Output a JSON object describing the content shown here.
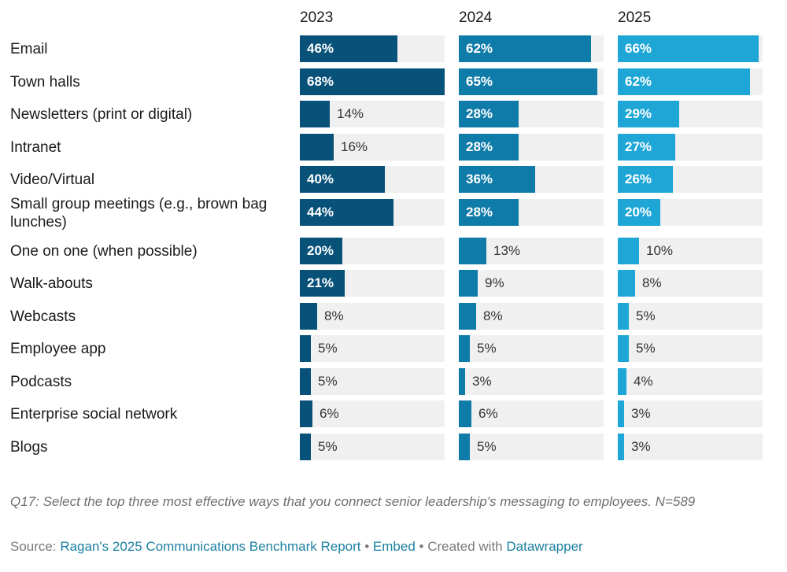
{
  "chart_data": {
    "type": "bar",
    "orientation": "horizontal",
    "layout": "small-multiples",
    "categories": [
      "Email",
      "Town halls",
      "Newsletters (print or digital)",
      "Intranet",
      "Video/Virtual",
      "Small group meetings (e.g., brown bag lunches)",
      "One on one (when possible)",
      "Walk-abouts",
      "Webcasts",
      "Employee app",
      "Podcasts",
      "Enterprise social network",
      "Blogs"
    ],
    "series": [
      {
        "name": "2023",
        "color": "#08527a",
        "values": [
          46,
          68,
          14,
          16,
          40,
          44,
          20,
          21,
          8,
          5,
          5,
          6,
          5
        ]
      },
      {
        "name": "2024",
        "color": "#0f7ba8",
        "values": [
          62,
          65,
          28,
          28,
          36,
          28,
          13,
          9,
          8,
          5,
          3,
          6,
          5
        ]
      },
      {
        "name": "2025",
        "color": "#1ea6d6",
        "values": [
          66,
          62,
          29,
          27,
          26,
          20,
          10,
          8,
          5,
          5,
          4,
          3,
          3
        ]
      }
    ],
    "value_suffix": "%",
    "xlim": [
      0,
      68
    ],
    "track_color": "#f0f0f0",
    "grid": false
  },
  "question": "Q17: Select the top three most effective ways that you connect senior leadership's messaging to employees. N=589",
  "source": {
    "prefix": "Source:",
    "report_link": "Ragan's 2025 Communications Benchmark Report",
    "separator1": "•",
    "embed_link": "Embed",
    "created_text": "• Created with",
    "datawrapper_link": "Datawrapper"
  }
}
